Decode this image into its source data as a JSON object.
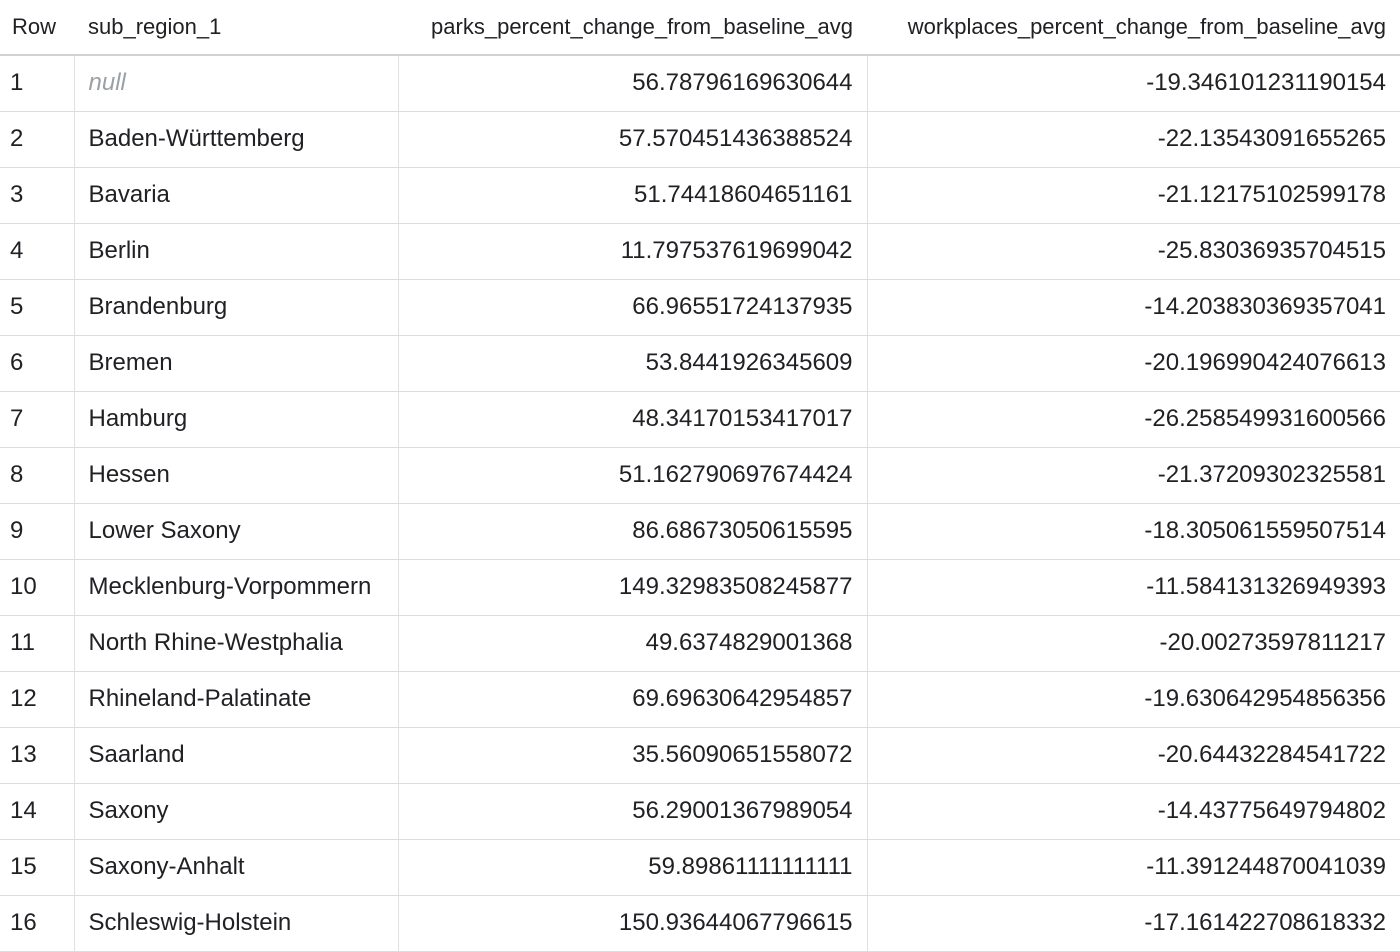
{
  "table": {
    "headers": {
      "row": "Row",
      "region": "sub_region_1",
      "parks": "parks_percent_change_from_baseline_avg",
      "workplaces": "workplaces_percent_change_from_baseline_avg"
    },
    "rows": [
      {
        "row": "1",
        "region": "null",
        "parks": "56.78796169630644",
        "workplaces": "-19.346101231190154"
      },
      {
        "row": "2",
        "region": "Baden-Württemberg",
        "parks": "57.570451436388524",
        "workplaces": "-22.13543091655265"
      },
      {
        "row": "3",
        "region": "Bavaria",
        "parks": "51.74418604651161",
        "workplaces": "-21.12175102599178"
      },
      {
        "row": "4",
        "region": "Berlin",
        "parks": "11.797537619699042",
        "workplaces": "-25.83036935704515"
      },
      {
        "row": "5",
        "region": "Brandenburg",
        "parks": "66.96551724137935",
        "workplaces": "-14.203830369357041"
      },
      {
        "row": "6",
        "region": "Bremen",
        "parks": "53.8441926345609",
        "workplaces": "-20.196990424076613"
      },
      {
        "row": "7",
        "region": "Hamburg",
        "parks": "48.34170153417017",
        "workplaces": "-26.258549931600566"
      },
      {
        "row": "8",
        "region": "Hessen",
        "parks": "51.162790697674424",
        "workplaces": "-21.37209302325581"
      },
      {
        "row": "9",
        "region": "Lower Saxony",
        "parks": "86.68673050615595",
        "workplaces": "-18.305061559507514"
      },
      {
        "row": "10",
        "region": "Mecklenburg-Vorpommern",
        "parks": "149.32983508245877",
        "workplaces": "-11.584131326949393"
      },
      {
        "row": "11",
        "region": "North Rhine-Westphalia",
        "parks": "49.6374829001368",
        "workplaces": "-20.00273597811217"
      },
      {
        "row": "12",
        "region": "Rhineland-Palatinate",
        "parks": "69.69630642954857",
        "workplaces": "-19.630642954856356"
      },
      {
        "row": "13",
        "region": "Saarland",
        "parks": "35.56090651558072",
        "workplaces": "-20.64432284541722"
      },
      {
        "row": "14",
        "region": "Saxony",
        "parks": "56.29001367989054",
        "workplaces": "-14.43775649794802"
      },
      {
        "row": "15",
        "region": "Saxony-Anhalt",
        "parks": "59.89861111111111",
        "workplaces": "-11.391244870041039"
      },
      {
        "row": "16",
        "region": "Schleswig-Holstein",
        "parks": "150.93644067796615",
        "workplaces": "-17.161422708618332"
      }
    ]
  }
}
